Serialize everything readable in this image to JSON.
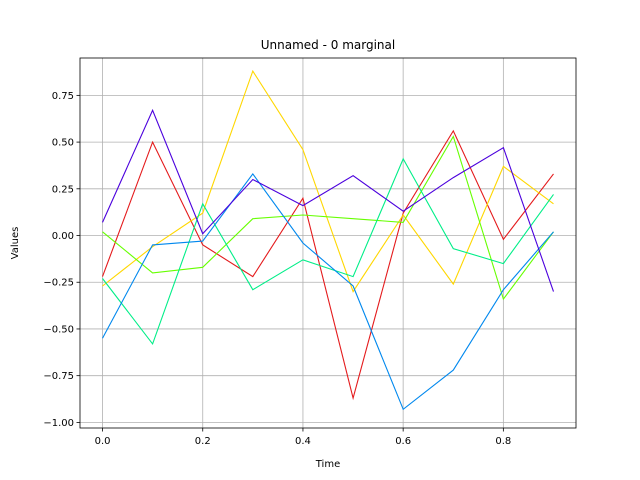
{
  "chart_data": {
    "type": "line",
    "title": "Unnamed - 0 marginal",
    "xlabel": "Time",
    "ylabel": "Values",
    "xlim": [
      -0.045,
      0.945
    ],
    "ylim": [
      -1.03,
      0.95
    ],
    "grid": true,
    "x": [
      0.0,
      0.1,
      0.2,
      0.3,
      0.4,
      0.5,
      0.6,
      0.7,
      0.8,
      0.9
    ],
    "x_ticks": [
      0.0,
      0.2,
      0.4,
      0.6,
      0.8
    ],
    "x_tick_labels": [
      "0.0",
      "0.2",
      "0.4",
      "0.6",
      "0.8"
    ],
    "y_ticks": [
      -1.0,
      -0.75,
      -0.5,
      -0.25,
      0.0,
      0.25,
      0.5,
      0.75
    ],
    "y_tick_labels": [
      "−1.00",
      "−0.75",
      "−0.50",
      "−0.25",
      "0.00",
      "0.25",
      "0.50",
      "0.75"
    ],
    "series": [
      {
        "color": "#e41a1c",
        "values": [
          -0.22,
          0.5,
          -0.05,
          -0.22,
          0.2,
          -0.87,
          0.12,
          0.56,
          -0.02,
          0.33
        ]
      },
      {
        "color": "#ffd700",
        "values": [
          -0.27,
          -0.06,
          0.12,
          0.88,
          0.46,
          -0.3,
          0.11,
          -0.26,
          0.37,
          0.17
        ]
      },
      {
        "color": "#66ff00",
        "values": [
          0.02,
          -0.2,
          -0.17,
          0.09,
          0.11,
          0.09,
          0.07,
          0.53,
          -0.34,
          0.02
        ]
      },
      {
        "color": "#00ee88",
        "values": [
          -0.23,
          -0.58,
          0.17,
          -0.29,
          -0.13,
          -0.22,
          0.41,
          -0.07,
          -0.15,
          0.22
        ]
      },
      {
        "color": "#0088ee",
        "values": [
          -0.55,
          -0.05,
          -0.03,
          0.33,
          -0.04,
          -0.27,
          -0.93,
          -0.72,
          -0.29,
          0.02
        ]
      },
      {
        "color": "#4b00dd",
        "values": [
          0.07,
          0.67,
          0.01,
          0.3,
          0.16,
          0.32,
          0.13,
          0.31,
          0.47,
          -0.3
        ]
      }
    ]
  }
}
